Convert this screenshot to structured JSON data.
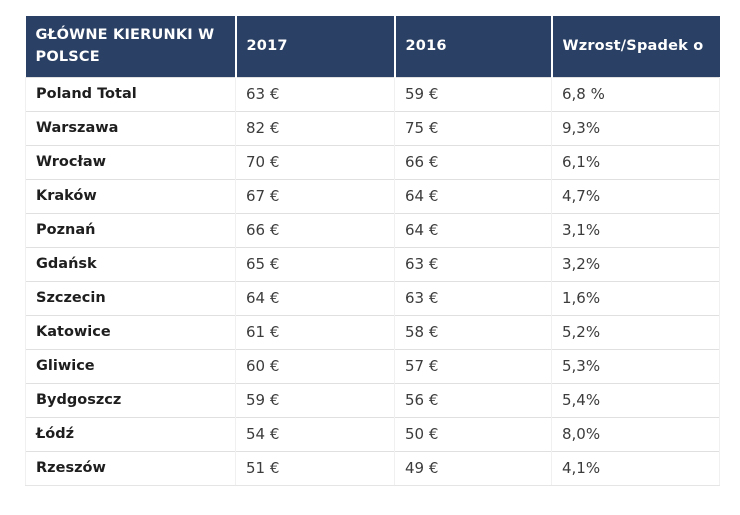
{
  "table": {
    "headers": [
      "GŁÓWNE KIERUNKI W\n POLSCE",
      "2017",
      "2016",
      "Wzrost/Spadek o"
    ],
    "rows": [
      [
        "Poland Total",
        "63 €",
        "59 €",
        "6,8 %"
      ],
      [
        "Warszawa",
        "82 €",
        "75 €",
        "9,3%"
      ],
      [
        "Wrocław",
        "70 €",
        "66 €",
        "6,1%"
      ],
      [
        "Kraków",
        "67 €",
        "64 €",
        "4,7%"
      ],
      [
        "Poznań",
        "66 €",
        "64 €",
        "3,1%"
      ],
      [
        "Gdańsk",
        "65 €",
        "63 €",
        "3,2%"
      ],
      [
        "Szczecin",
        "64 €",
        "63 €",
        "1,6%"
      ],
      [
        "Katowice",
        "61 €",
        "58 €",
        "5,2%"
      ],
      [
        "Gliwice",
        "60 €",
        "57 €",
        "5,3%"
      ],
      [
        "Bydgoszcz",
        "59 €",
        "56 €",
        "5,4%"
      ],
      [
        "Łódź",
        "54 €",
        "50 €",
        "8,0%"
      ],
      [
        "Rzeszów",
        "51 €",
        "49 €",
        "4,1%"
      ]
    ]
  },
  "colors": {
    "header_bg": "#2a4064",
    "header_text": "#ffffff",
    "row_divider": "#e0e0e0",
    "city_text": "#1e1e1e",
    "value_text": "#3c3c3c"
  },
  "chart_data": {
    "type": "table",
    "title": "GŁÓWNE KIERUNKI W POLSCE",
    "columns": [
      "GŁÓWNE KIERUNKI W POLSCE",
      "2017",
      "2016",
      "Wzrost/Spadek o"
    ],
    "destinations": [
      "Poland Total",
      "Warszawa",
      "Wrocław",
      "Kraków",
      "Poznań",
      "Gdańsk",
      "Szczecin",
      "Katowice",
      "Gliwice",
      "Bydgoszcz",
      "Łódź",
      "Rzeszów"
    ],
    "series": [
      {
        "name": "2017",
        "unit": "EUR",
        "values": [
          63,
          82,
          70,
          67,
          66,
          65,
          64,
          61,
          60,
          59,
          54,
          51
        ]
      },
      {
        "name": "2016",
        "unit": "EUR",
        "values": [
          59,
          75,
          66,
          64,
          64,
          63,
          63,
          58,
          57,
          56,
          50,
          49
        ]
      },
      {
        "name": "Wzrost/Spadek o",
        "unit": "%",
        "values": [
          6.8,
          9.3,
          6.1,
          4.7,
          3.1,
          3.2,
          1.6,
          5.2,
          5.3,
          5.4,
          8.0,
          4.1
        ]
      }
    ]
  }
}
